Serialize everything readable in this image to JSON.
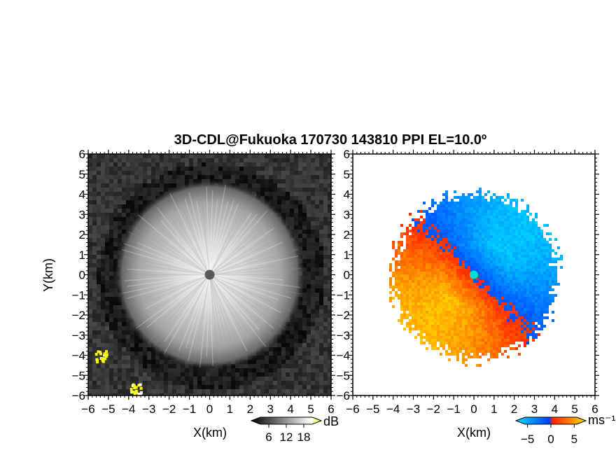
{
  "chart_data": [
    {
      "type": "heatmap",
      "panel": "left",
      "title": "3D-CDL@Fukuoka 170730 143810 PPI EL=10.0º",
      "xlabel": "X(km)",
      "ylabel": "Y(km)",
      "xlim": [
        -6,
        6
      ],
      "ylim": [
        -6,
        6
      ],
      "xticks": [
        "−6",
        "−5",
        "−4",
        "−3",
        "−2",
        "−1",
        "0",
        "1",
        "2",
        "3",
        "4",
        "5",
        "6"
      ],
      "yticks": [
        "6",
        "5",
        "4",
        "3",
        "2",
        "1",
        "0",
        "−1",
        "−2",
        "−3",
        "−4",
        "−5",
        "−6"
      ],
      "colorbar": {
        "unit": "dB",
        "range": [
          0,
          24
        ],
        "ticks": [
          "6",
          "12",
          "18"
        ],
        "colors": [
          "#000000",
          "#ffffff",
          "#ffff00"
        ]
      },
      "radar_center": [
        0,
        0
      ],
      "bright_region_radius_km": 4.2,
      "dark_ring_radius_km": [
        4.4,
        5.6
      ],
      "clutter_patches": [
        {
          "x": -5.4,
          "y": -4.0
        },
        {
          "x": -3.7,
          "y": -5.6
        }
      ]
    },
    {
      "type": "heatmap",
      "panel": "right",
      "xlabel": "X(km)",
      "xlim": [
        -6,
        6
      ],
      "ylim": [
        -6,
        6
      ],
      "xticks": [
        "−6",
        "−5",
        "−4",
        "−3",
        "−2",
        "−1",
        "0",
        "1",
        "2",
        "3",
        "4",
        "5",
        "6"
      ],
      "yticks": [
        "6",
        "5",
        "4",
        "3",
        "2",
        "1",
        "0",
        "−1",
        "−2",
        "−3",
        "−4",
        "−5",
        "−6"
      ],
      "colorbar": {
        "unit": "ms⁻¹",
        "range": [
          -7.5,
          7.5
        ],
        "ticks": [
          "−5",
          "0",
          "5"
        ],
        "colors": [
          "#00c8ff",
          "#0050ff",
          "#ff3000",
          "#ffdd00"
        ]
      },
      "radar_center": [
        0,
        0
      ],
      "data_radius_km": 4.1,
      "wind_toward_radar_bearing": "north-east",
      "wind_away_from_radar_bearing": "south-west"
    }
  ]
}
